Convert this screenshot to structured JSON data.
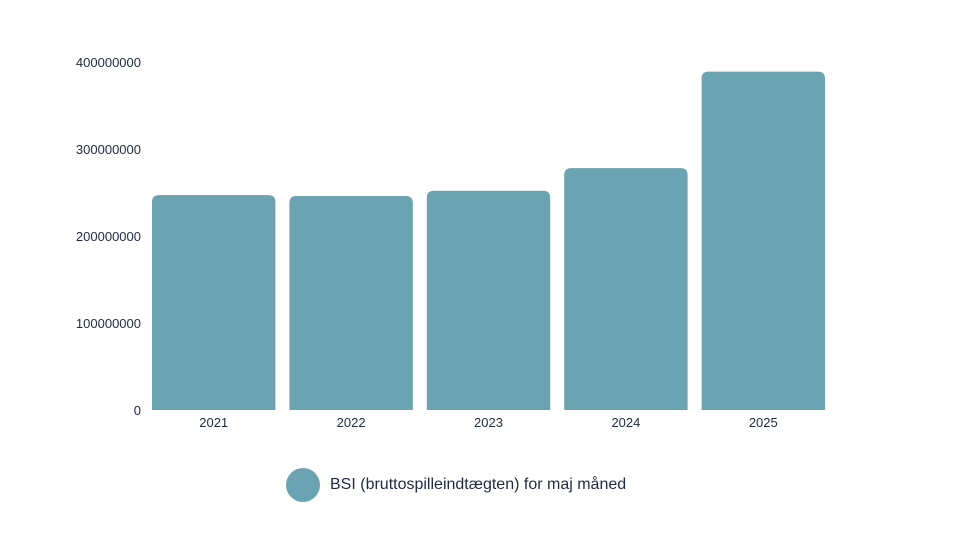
{
  "chart_data": {
    "type": "bar",
    "categories": [
      "2021",
      "2022",
      "2023",
      "2024",
      "2025"
    ],
    "series": [
      {
        "name": "BSI (bruttospilleindtægten) for maj måned",
        "values": [
          247000000,
          246000000,
          252000000,
          278000000,
          389000000
        ]
      }
    ],
    "ylim": [
      0,
      400000000
    ],
    "yticks": [
      "0",
      "100000000",
      "200000000",
      "300000000",
      "400000000"
    ],
    "grid": false,
    "legend_position": "bottom",
    "colors": {
      "bar": "#6aa3b1",
      "text": "#1f2a44"
    }
  },
  "legend": {
    "label": "BSI (bruttospilleindtægten) for maj måned"
  }
}
